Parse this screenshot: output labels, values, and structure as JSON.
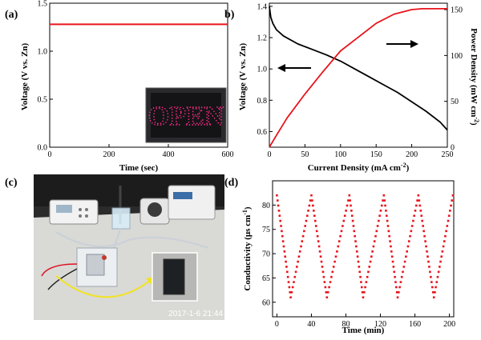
{
  "panels": {
    "a": {
      "label": "(a)"
    },
    "b": {
      "label": "b)"
    },
    "c": {
      "label": "(c)",
      "timestamp": "2017-1-6 21:44"
    },
    "d": {
      "label": "(d)"
    }
  },
  "colors": {
    "red": "#e8141b",
    "black": "#000000",
    "photo_bg": "#2b2b2b",
    "led": "#ff2a8a"
  },
  "chart_data": [
    {
      "id": "a",
      "type": "line",
      "xlabel": "Time (sec)",
      "ylabel": "Voltage (V vs. Zn)",
      "xlim": [
        0,
        600
      ],
      "ylim": [
        0.0,
        1.5
      ],
      "xticks": [
        "0",
        "200",
        "400",
        "600"
      ],
      "yticks": [
        "0.0",
        "0.5",
        "1.0",
        "1.5"
      ],
      "series": [
        {
          "name": "voltage",
          "x": [
            0,
            600
          ],
          "y": [
            1.28,
            1.28
          ]
        }
      ],
      "inset": {
        "type": "photo",
        "content": "LED display",
        "text": "OPEN"
      }
    },
    {
      "id": "b",
      "type": "line",
      "xlabel": "Current Density (mA cm",
      "xlabel_sup": "-2",
      "xlabel_end": ")",
      "ylabel": "Voltage (V vs. Zn)",
      "y2label": "Power Density (mW cm",
      "y2label_sup": "-2",
      "y2label_end": ")",
      "xlim": [
        0,
        250
      ],
      "ylim": [
        0.5,
        1.42
      ],
      "y2lim": [
        0,
        157
      ],
      "xticks": [
        "0",
        "50",
        "100",
        "150",
        "200",
        "250"
      ],
      "yticks": [
        "0.6",
        "0.8",
        "1.0",
        "1.2",
        "1.4"
      ],
      "y2ticks": [
        "0",
        "50",
        "100",
        "150"
      ],
      "series": [
        {
          "name": "voltage",
          "axis": "left",
          "x": [
            0,
            2,
            5,
            10,
            20,
            40,
            60,
            80,
            100,
            120,
            140,
            160,
            180,
            200,
            220,
            240,
            250
          ],
          "y": [
            1.4,
            1.33,
            1.29,
            1.25,
            1.21,
            1.16,
            1.125,
            1.09,
            1.05,
            1.0,
            0.95,
            0.9,
            0.85,
            0.79,
            0.73,
            0.66,
            0.61
          ]
        },
        {
          "name": "power",
          "axis": "right",
          "x": [
            0,
            10,
            25,
            50,
            75,
            100,
            125,
            150,
            175,
            200,
            215,
            230,
            240,
            250
          ],
          "y": [
            0,
            13,
            32,
            58,
            82,
            105,
            120,
            135,
            145,
            150,
            151,
            151,
            151,
            151
          ]
        }
      ]
    },
    {
      "id": "d",
      "type": "scatter",
      "xlabel": "Time (min)",
      "ylabel": "Conductivity (μs cm",
      "ylabel_sup": "-1",
      "ylabel_end": ")",
      "xlim": [
        -5,
        205
      ],
      "ylim": [
        57,
        85
      ],
      "xticks": [
        "0",
        "40",
        "80",
        "120",
        "160",
        "200"
      ],
      "yticks": [
        "60",
        "65",
        "70",
        "75",
        "80"
      ],
      "cycle_points": [
        [
          0,
          82
        ],
        [
          16,
          61
        ],
        [
          40,
          82
        ],
        [
          58,
          61
        ],
        [
          84,
          82
        ],
        [
          100,
          61
        ],
        [
          124,
          82
        ],
        [
          140,
          61
        ],
        [
          164,
          82
        ],
        [
          182,
          61
        ],
        [
          204,
          82
        ]
      ]
    }
  ]
}
